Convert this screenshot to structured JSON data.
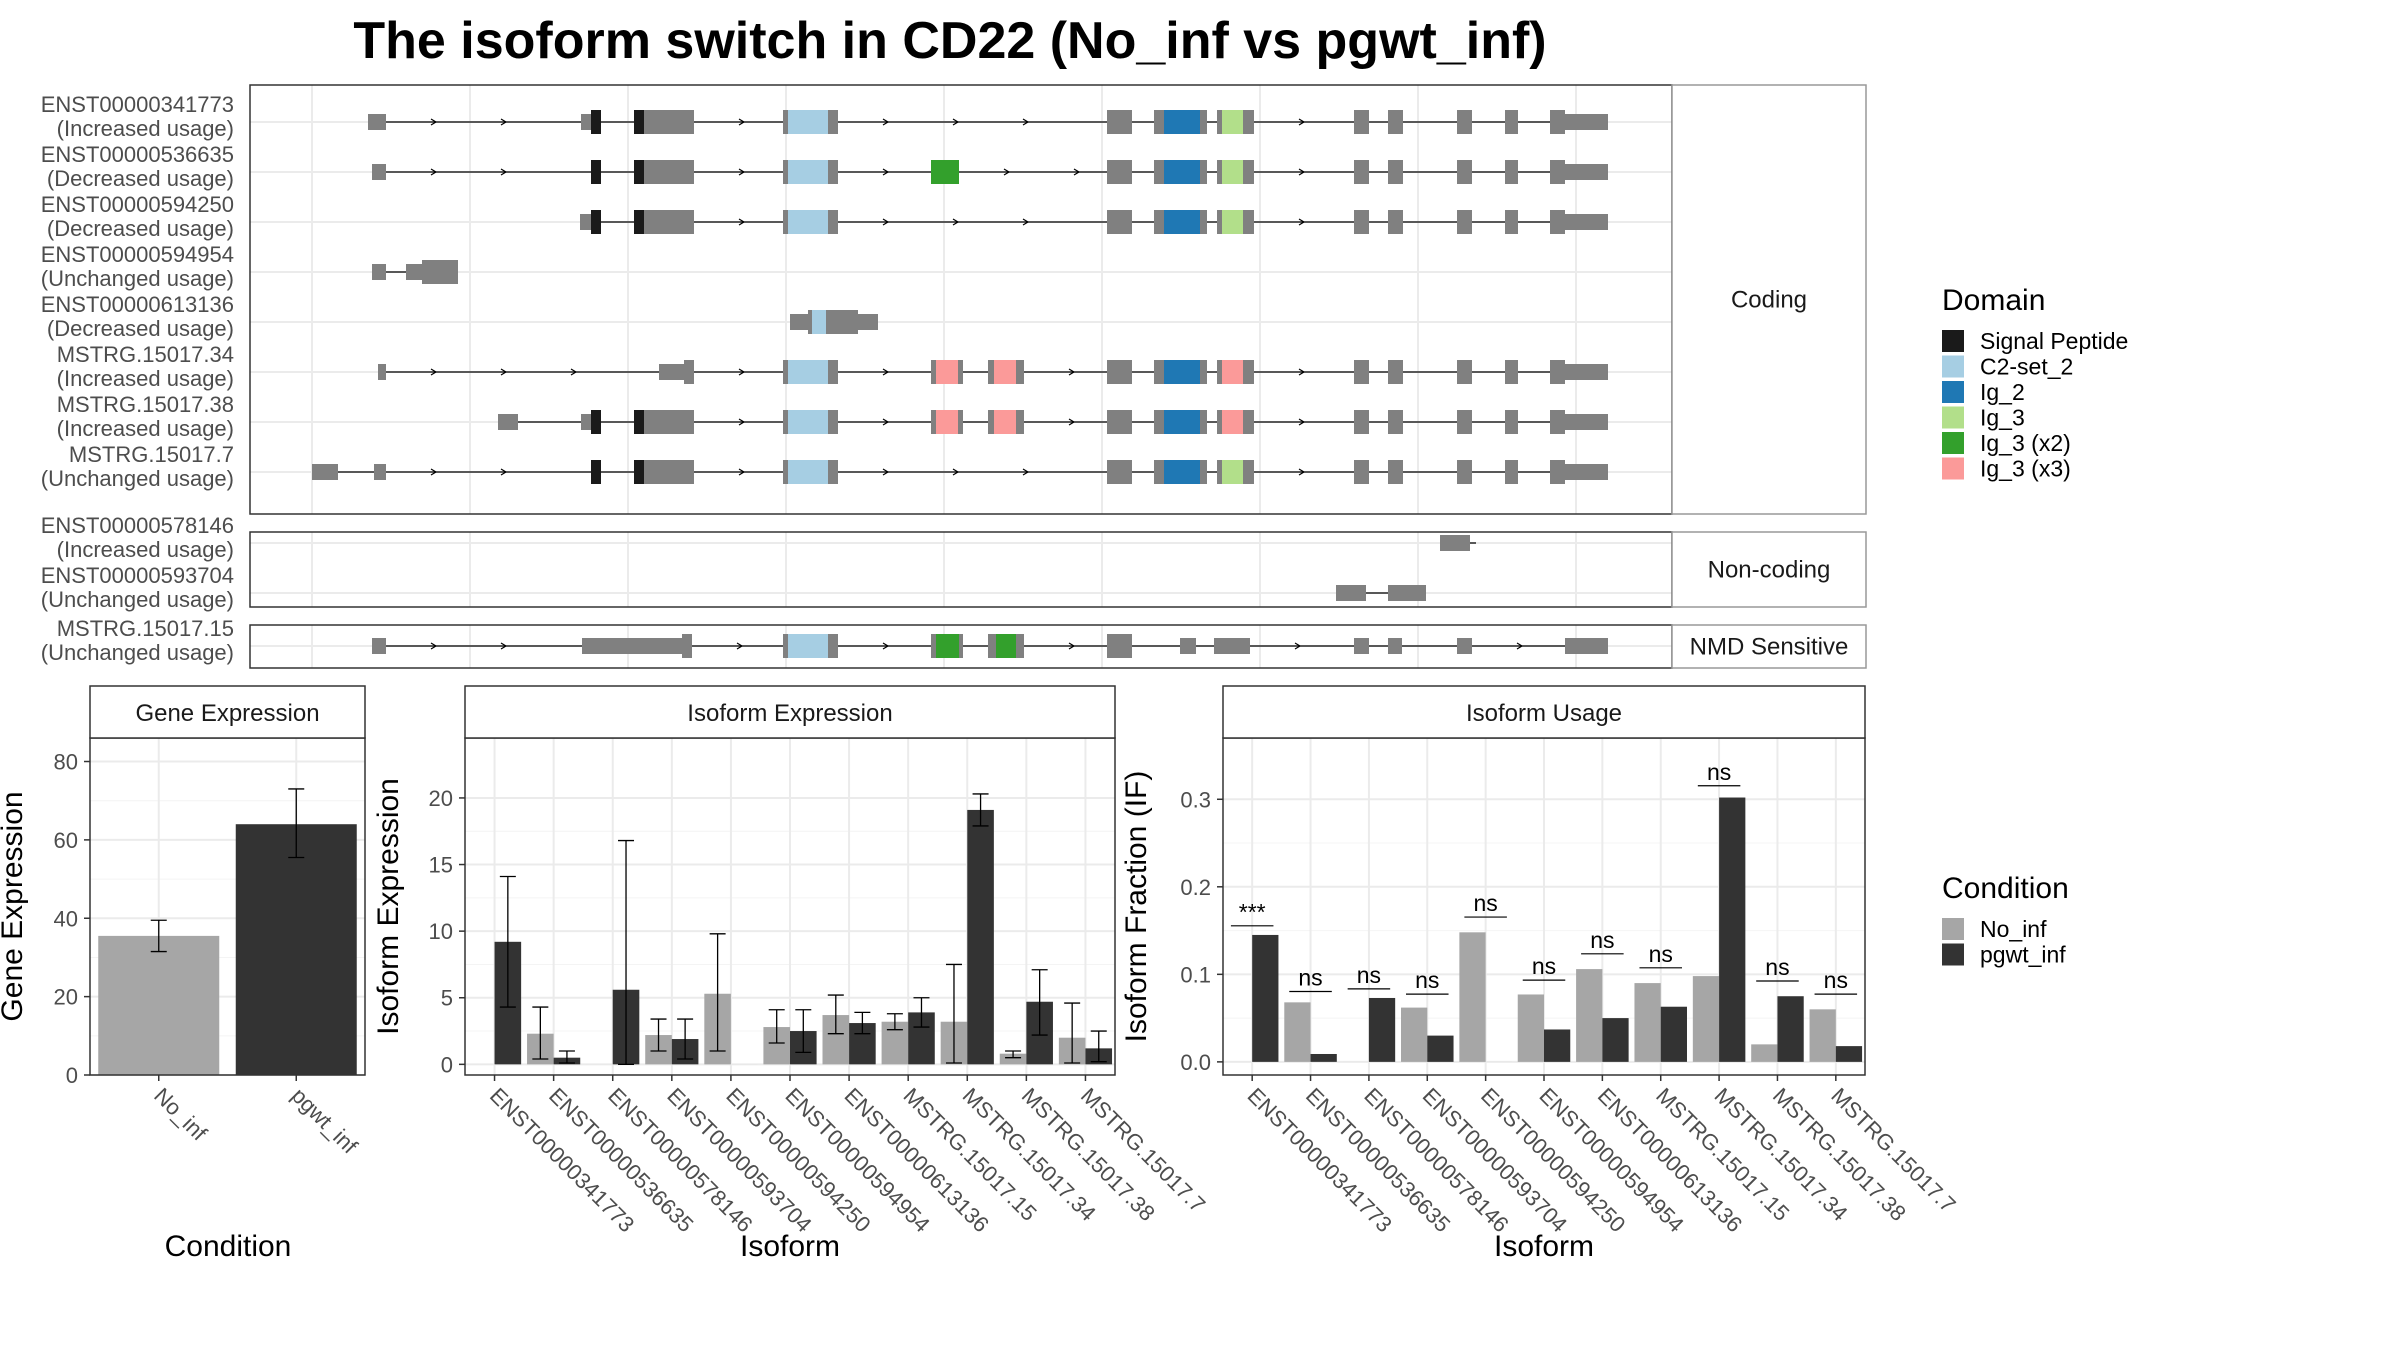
{
  "title": "The isoform switch in CD22 (No_inf vs pgwt_inf)",
  "colors": {
    "No_inf": "#a6a6a6",
    "pgwt_inf": "#333333",
    "intron": "#000000",
    "exon": "#808080",
    "panel_border": "#333333",
    "grid": "#ebebeb",
    "strip_fill": "#ffffff"
  },
  "domain_legend": {
    "title": "Domain",
    "items": [
      {
        "name": "Signal Peptide",
        "color": "#1a1a1a"
      },
      {
        "name": "C2-set_2",
        "color": "#a6cee3"
      },
      {
        "name": "Ig_2",
        "color": "#1f78b4"
      },
      {
        "name": "Ig_3",
        "color": "#b2df8a"
      },
      {
        "name": "Ig_3 (x2)",
        "color": "#33a02c"
      },
      {
        "name": "Ig_3 (x3)",
        "color": "#fb9a99"
      }
    ]
  },
  "condition_legend": {
    "title": "Condition",
    "items": [
      {
        "name": "No_inf",
        "color": "#a6a6a6"
      },
      {
        "name": "pgwt_inf",
        "color": "#333333"
      }
    ]
  },
  "structure_panels": [
    {
      "label": "Coding",
      "isoforms": [
        {
          "id": "ENST00000341773",
          "usage": "(Increased usage)"
        },
        {
          "id": "ENST00000536635",
          "usage": "(Decreased usage)"
        },
        {
          "id": "ENST00000594250",
          "usage": "(Decreased usage)"
        },
        {
          "id": "ENST00000594954",
          "usage": "(Unchanged usage)"
        },
        {
          "id": "ENST00000613136",
          "usage": "(Decreased usage)"
        },
        {
          "id": "MSTRG.15017.34",
          "usage": "(Increased usage)"
        },
        {
          "id": "MSTRG.15017.38",
          "usage": "(Increased usage)"
        },
        {
          "id": "MSTRG.15017.7",
          "usage": "(Unchanged usage)"
        }
      ]
    },
    {
      "label": "Non-coding",
      "isoforms": [
        {
          "id": "ENST00000578146",
          "usage": "(Increased usage)"
        },
        {
          "id": "ENST00000593704",
          "usage": "(Unchanged usage)"
        }
      ]
    },
    {
      "label": "NMD Sensitive",
      "isoforms": [
        {
          "id": "MSTRG.15017.15",
          "usage": "(Unchanged usage)"
        }
      ]
    }
  ],
  "chart_data": [
    {
      "type": "bar",
      "title": "Gene Expression",
      "xlabel": "Condition",
      "ylabel": "Gene Expression",
      "ylim": [
        0,
        86
      ],
      "yticks": [
        0,
        20,
        40,
        60,
        80
      ],
      "categories": [
        "No_inf",
        "pgwt_inf"
      ],
      "values": [
        35.5,
        64
      ],
      "errors": [
        [
          31.5,
          39.5
        ],
        [
          55.5,
          73
        ]
      ]
    },
    {
      "type": "bar",
      "title": "Isoform Expression",
      "xlabel": "Isoform",
      "ylabel": "Isoform Expression",
      "ylim": [
        -0.8,
        24.5
      ],
      "yticks": [
        0,
        5,
        10,
        15,
        20
      ],
      "categories": [
        "ENST00000341773",
        "ENST00000536635",
        "ENST00000578146",
        "ENST00000593704",
        "ENST00000594250",
        "ENST00000594954",
        "ENST00000613136",
        "MSTRG.15017.15",
        "MSTRG.15017.34",
        "MSTRG.15017.38",
        "MSTRG.15017.7"
      ],
      "series": [
        {
          "name": "No_inf",
          "values": [
            0,
            2.3,
            0,
            2.2,
            5.3,
            2.8,
            3.7,
            3.2,
            3.2,
            0.8,
            2.0
          ],
          "errors": [
            [
              0,
              0
            ],
            [
              0.4,
              4.3
            ],
            [
              0,
              0
            ],
            [
              1.0,
              3.4
            ],
            [
              1.0,
              9.8
            ],
            [
              1.6,
              4.1
            ],
            [
              2.3,
              5.2
            ],
            [
              2.6,
              3.8
            ],
            [
              0.1,
              7.5
            ],
            [
              0.5,
              1.0
            ],
            [
              0.1,
              4.6
            ]
          ]
        },
        {
          "name": "pgwt_inf",
          "values": [
            9.2,
            0.5,
            5.6,
            1.9,
            0,
            2.5,
            3.1,
            3.9,
            19.1,
            4.7,
            1.2
          ],
          "errors": [
            [
              4.3,
              14.1
            ],
            [
              0.1,
              1.0
            ],
            [
              0,
              16.8
            ],
            [
              0.4,
              3.4
            ],
            [
              0,
              0
            ],
            [
              0.9,
              4.1
            ],
            [
              2.3,
              3.9
            ],
            [
              2.8,
              5.0
            ],
            [
              17.9,
              20.3
            ],
            [
              2.2,
              7.1
            ],
            [
              0.2,
              2.5
            ]
          ]
        }
      ]
    },
    {
      "type": "bar",
      "title": "Isoform Usage",
      "xlabel": "Isoform",
      "ylabel": "Isoform Fraction (IF)",
      "ylim": [
        -0.015,
        0.37
      ],
      "yticks": [
        0.0,
        0.1,
        0.2,
        0.3
      ],
      "ytick_labels": [
        "0.0",
        "0.1",
        "0.2",
        "0.3"
      ],
      "categories": [
        "ENST00000341773",
        "ENST00000536635",
        "ENST00000578146",
        "ENST00000593704",
        "ENST00000594250",
        "ENST00000594954",
        "ENST00000613136",
        "MSTRG.15017.15",
        "MSTRG.15017.34",
        "MSTRG.15017.38",
        "MSTRG.15017.7"
      ],
      "series": [
        {
          "name": "No_inf",
          "values": [
            0,
            0.068,
            0,
            0.062,
            0.148,
            0.077,
            0.106,
            0.09,
            0.098,
            0.02,
            0.06
          ]
        },
        {
          "name": "pgwt_inf",
          "values": [
            0.145,
            0.009,
            0.073,
            0.03,
            0,
            0.037,
            0.05,
            0.063,
            0.302,
            0.075,
            0.018
          ]
        }
      ],
      "annotations": [
        "***",
        "ns",
        "ns",
        "ns",
        "ns",
        "ns",
        "ns",
        "ns",
        "ns",
        "ns",
        "ns"
      ],
      "annotation_y": [
        0.16,
        0.085,
        0.088,
        0.082,
        0.17,
        0.098,
        0.128,
        0.112,
        0.32,
        0.097,
        0.082
      ]
    }
  ]
}
